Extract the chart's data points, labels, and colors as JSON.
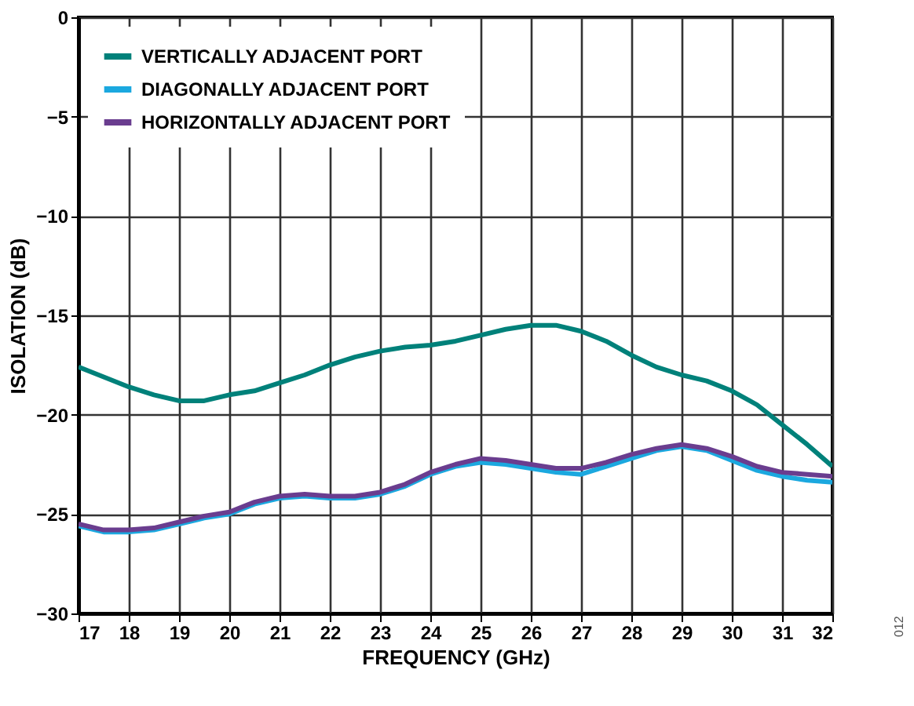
{
  "chart_data": {
    "type": "line",
    "xlabel": "FREQUENCY (GHz)",
    "ylabel": "ISOLATION (dB)",
    "x": [
      17,
      17.5,
      18,
      18.5,
      19,
      19.5,
      20,
      20.5,
      21,
      21.5,
      22,
      22.5,
      23,
      23.5,
      24,
      24.5,
      25,
      25.5,
      26,
      26.5,
      27,
      27.5,
      28,
      28.5,
      29,
      29.5,
      30,
      30.5,
      31,
      31.5,
      32
    ],
    "series": [
      {
        "name": "VERTICALLY ADJACENT PORT",
        "color": "#00817a",
        "values": [
          -17.6,
          -18.1,
          -18.6,
          -19.0,
          -19.3,
          -19.3,
          -19.0,
          -18.8,
          -18.4,
          -18.0,
          -17.5,
          -17.1,
          -16.8,
          -16.6,
          -16.5,
          -16.3,
          -16.0,
          -15.7,
          -15.5,
          -15.5,
          -15.8,
          -16.3,
          -17.0,
          -17.6,
          -18.0,
          -18.3,
          -18.8,
          -19.5,
          -20.5,
          -21.5,
          -22.6
        ]
      },
      {
        "name": "DIAGONALLY ADJACENT PORT",
        "color": "#1ba8df",
        "values": [
          -25.6,
          -25.9,
          -25.9,
          -25.8,
          -25.5,
          -25.2,
          -25.0,
          -24.5,
          -24.2,
          -24.1,
          -24.2,
          -24.2,
          -24.0,
          -23.6,
          -23.0,
          -22.6,
          -22.4,
          -22.5,
          -22.7,
          -22.9,
          -23.0,
          -22.6,
          -22.2,
          -21.8,
          -21.6,
          -21.8,
          -22.3,
          -22.8,
          -23.1,
          -23.3,
          -23.4
        ]
      },
      {
        "name": "HORIZONTALLY ADJACENT PORT",
        "color": "#6a3d8f",
        "values": [
          -25.5,
          -25.8,
          -25.8,
          -25.7,
          -25.4,
          -25.1,
          -24.9,
          -24.4,
          -24.1,
          -24.0,
          -24.1,
          -24.1,
          -23.9,
          -23.5,
          -22.9,
          -22.5,
          -22.2,
          -22.3,
          -22.5,
          -22.7,
          -22.7,
          -22.4,
          -22.0,
          -21.7,
          -21.5,
          -21.7,
          -22.1,
          -22.6,
          -22.9,
          -23.0,
          -23.1
        ]
      }
    ],
    "xlim": [
      17,
      32
    ],
    "xticks": [
      17,
      18,
      19,
      20,
      21,
      22,
      23,
      24,
      25,
      26,
      27,
      28,
      29,
      30,
      31,
      32
    ],
    "ylim": [
      -30,
      0
    ],
    "yticks": [
      {
        "value": -30,
        "label": "−30"
      },
      {
        "value": -25,
        "label": "−25"
      },
      {
        "value": -20,
        "label": "−20"
      },
      {
        "value": -15,
        "label": "−15"
      },
      {
        "value": -10,
        "label": "−10"
      },
      {
        "value": -5,
        "label": "−5"
      },
      0
    ],
    "grid": true,
    "legend": "top left",
    "line_style": "solid",
    "marker": "none",
    "annotations": [
      "012"
    ]
  }
}
